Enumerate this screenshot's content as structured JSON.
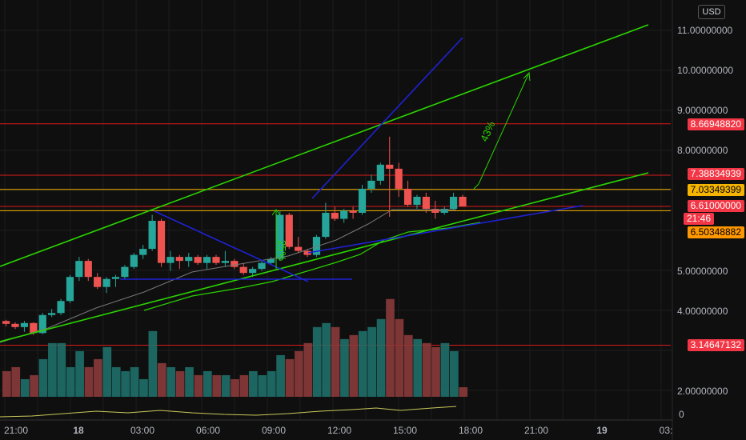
{
  "currency": "USD",
  "price_axis": {
    "ticks": [
      "11.00000000",
      "10.00000000",
      "9.00000000",
      "8.00000000",
      "5.00000000",
      "4.00000000",
      "2.00000000"
    ],
    "rsi_zero": "0"
  },
  "price_labels": [
    {
      "text": "8.66948820",
      "bg": "#f23645",
      "fg": "#ffffff"
    },
    {
      "text": "7.38834939",
      "bg": "#f23645",
      "fg": "#ffffff"
    },
    {
      "text": "7.03349399",
      "bg": "#f5b400",
      "fg": "#000000"
    },
    {
      "text": "6.61000000",
      "bg": "#f23645",
      "fg": "#ffffff"
    },
    {
      "text": "21:46",
      "bg": "#f23645",
      "fg": "#ffffff"
    },
    {
      "text": "6.50348882",
      "bg": "#ff9800",
      "fg": "#000000"
    },
    {
      "text": "3.14647132",
      "bg": "#f23645",
      "fg": "#ffffff"
    }
  ],
  "time_axis": [
    "21:00",
    "18",
    "03:00",
    "06:00",
    "09:00",
    "12:00",
    "15:00",
    "18:00",
    "21:00",
    "19",
    "03:"
  ],
  "annotations": {
    "pct_small": "25%",
    "pct_large": "43%"
  },
  "colors": {
    "up": "#26a69a",
    "down": "#ef5350",
    "trend": "#2ad400",
    "blue": "#1e22d6",
    "hline": "#d8191a",
    "orange": "#f5b400"
  },
  "chart_data": {
    "type": "candlestick",
    "candles": [
      [
        3.75,
        3.78,
        3.62,
        3.68
      ],
      [
        3.68,
        3.72,
        3.55,
        3.6
      ],
      [
        3.6,
        3.75,
        3.48,
        3.7
      ],
      [
        3.7,
        3.72,
        3.4,
        3.45
      ],
      [
        3.45,
        3.95,
        3.42,
        3.9
      ],
      [
        3.9,
        4.05,
        3.85,
        3.95
      ],
      [
        3.95,
        4.3,
        3.9,
        4.25
      ],
      [
        4.25,
        4.9,
        4.2,
        4.85
      ],
      [
        4.85,
        5.35,
        4.75,
        5.25
      ],
      [
        5.25,
        5.3,
        4.75,
        4.85
      ],
      [
        4.85,
        4.95,
        4.55,
        4.6
      ],
      [
        4.6,
        4.85,
        4.45,
        4.8
      ],
      [
        4.8,
        4.9,
        4.6,
        4.85
      ],
      [
        4.85,
        5.15,
        4.8,
        5.1
      ],
      [
        5.1,
        5.45,
        5.05,
        5.4
      ],
      [
        5.4,
        5.65,
        5.3,
        5.55
      ],
      [
        5.55,
        6.4,
        5.5,
        6.25
      ],
      [
        6.25,
        6.3,
        5.1,
        5.2
      ],
      [
        5.2,
        5.5,
        5.0,
        5.35
      ],
      [
        5.35,
        5.4,
        5.05,
        5.25
      ],
      [
        5.25,
        5.45,
        5.1,
        5.35
      ],
      [
        5.35,
        5.4,
        5.15,
        5.2
      ],
      [
        5.2,
        5.4,
        5.05,
        5.35
      ],
      [
        5.35,
        5.4,
        5.15,
        5.2
      ],
      [
        5.2,
        5.5,
        5.1,
        5.25
      ],
      [
        5.25,
        5.3,
        5.05,
        5.1
      ],
      [
        5.1,
        5.2,
        4.9,
        4.95
      ],
      [
        4.95,
        5.1,
        4.85,
        5.05
      ],
      [
        5.05,
        5.25,
        5.0,
        5.2
      ],
      [
        5.2,
        5.35,
        5.15,
        5.3
      ],
      [
        5.3,
        6.5,
        5.25,
        6.4
      ],
      [
        6.4,
        6.45,
        5.55,
        5.6
      ],
      [
        5.6,
        5.85,
        5.45,
        5.5
      ],
      [
        5.5,
        5.55,
        5.35,
        5.4
      ],
      [
        5.4,
        5.9,
        5.35,
        5.85
      ],
      [
        5.85,
        6.7,
        5.8,
        6.45
      ],
      [
        6.45,
        6.6,
        6.25,
        6.3
      ],
      [
        6.3,
        6.55,
        6.2,
        6.5
      ],
      [
        6.5,
        6.6,
        6.3,
        6.45
      ],
      [
        6.45,
        7.15,
        6.4,
        7.05
      ],
      [
        7.05,
        7.4,
        6.95,
        7.25
      ],
      [
        7.25,
        7.7,
        7.15,
        7.65
      ],
      [
        7.65,
        8.35,
        6.35,
        7.55
      ],
      [
        7.55,
        7.7,
        6.85,
        7.05
      ],
      [
        7.05,
        7.25,
        6.6,
        6.65
      ],
      [
        6.65,
        6.9,
        6.55,
        6.85
      ],
      [
        6.85,
        6.95,
        6.45,
        6.55
      ],
      [
        6.55,
        6.75,
        6.3,
        6.45
      ],
      [
        6.45,
        6.6,
        6.4,
        6.55
      ],
      [
        6.55,
        6.95,
        6.5,
        6.85
      ],
      [
        6.85,
        6.9,
        6.6,
        6.61
      ]
    ],
    "volume": [
      2.5,
      2.6,
      2.3,
      2.4,
      2.8,
      3.2,
      3.2,
      2.6,
      3.0,
      2.6,
      2.8,
      3.1,
      2.6,
      2.5,
      2.6,
      2.3,
      3.5,
      2.7,
      2.6,
      2.5,
      2.6,
      2.4,
      2.5,
      2.4,
      2.4,
      2.3,
      2.4,
      2.5,
      2.4,
      2.5,
      2.9,
      2.8,
      3.0,
      3.2,
      3.6,
      3.7,
      3.6,
      3.3,
      3.4,
      3.5,
      3.6,
      3.8,
      4.3,
      3.8,
      3.4,
      3.3,
      3.2,
      3.1,
      3.2,
      3.0,
      2.1
    ],
    "horizontal_levels": [
      8.6694882,
      7.38834939,
      7.03349399,
      6.61,
      6.50348882,
      3.14647132
    ],
    "ylim": [
      2.0,
      11.3
    ]
  }
}
